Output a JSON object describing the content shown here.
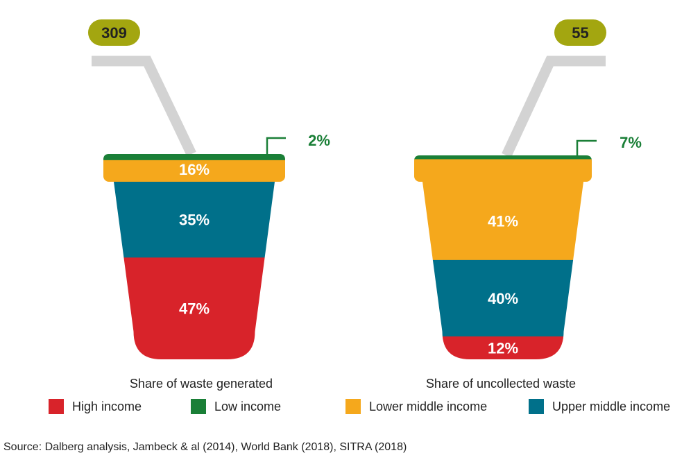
{
  "chart_data": {
    "type": "bar",
    "stacked": true,
    "series_order": [
      "Low income",
      "Lower middle income",
      "Upper middle income",
      "High income"
    ],
    "charts": [
      {
        "total": "309",
        "title": "Share of waste generated",
        "segments": [
          {
            "name": "Low income",
            "value": 2,
            "label": "2%"
          },
          {
            "name": "Lower middle income",
            "value": 16,
            "label": "16%"
          },
          {
            "name": "Upper middle income",
            "value": 35,
            "label": "35%"
          },
          {
            "name": "High income",
            "value": 47,
            "label": "47%"
          }
        ]
      },
      {
        "total": "55",
        "title": "Share of uncollected waste",
        "segments": [
          {
            "name": "Low income",
            "value": 7,
            "label": "7%"
          },
          {
            "name": "Lower middle income",
            "value": 41,
            "label": "41%"
          },
          {
            "name": "Upper middle income",
            "value": 40,
            "label": "40%"
          },
          {
            "name": "High income",
            "value": 12,
            "label": "12%"
          }
        ]
      }
    ],
    "legend": [
      {
        "name": "High income",
        "color": "#d8232a"
      },
      {
        "name": "Low income",
        "color": "#1a7f37"
      },
      {
        "name": "Lower middle income",
        "color": "#f5a81c"
      },
      {
        "name": "Upper middle income",
        "color": "#00708a"
      }
    ],
    "colors": {
      "label_text": "#ffffff",
      "callout": "#1a7f37",
      "badge": "#a3a610",
      "straw": "#d3d3d3"
    }
  },
  "source": "Source: Dalberg analysis, Jambeck & al (2014), World Bank (2018), SITRA (2018)"
}
